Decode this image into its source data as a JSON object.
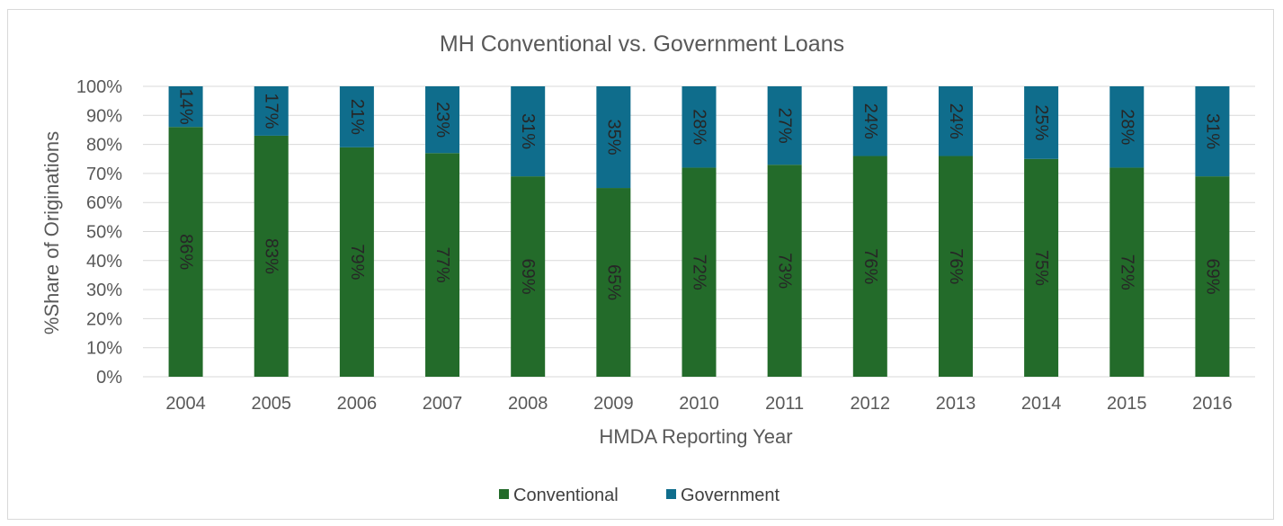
{
  "chart_data": {
    "type": "bar",
    "stacked": true,
    "orientation": "vertical",
    "title": "MH Conventional vs. Government Loans",
    "xlabel": "HMDA Reporting Year",
    "ylabel": "%Share of Originations",
    "ylim": [
      0,
      100
    ],
    "y_ticks": [
      "0%",
      "10%",
      "20%",
      "30%",
      "40%",
      "50%",
      "60%",
      "70%",
      "80%",
      "90%",
      "100%"
    ],
    "grid": true,
    "legend_position": "bottom",
    "data_labels": true,
    "data_label_rotation": "vertical",
    "categories": [
      "2004",
      "2005",
      "2006",
      "2007",
      "2008",
      "2009",
      "2010",
      "2011",
      "2012",
      "2013",
      "2014",
      "2015",
      "2016"
    ],
    "series": [
      {
        "name": "Conventional",
        "color": "#236b2a",
        "values": [
          86,
          83,
          79,
          77,
          69,
          65,
          72,
          73,
          76,
          76,
          75,
          72,
          69
        ],
        "labels": [
          "86%",
          "83%",
          "79%",
          "77%",
          "69%",
          "65%",
          "72%",
          "73%",
          "76%",
          "76%",
          "75%",
          "72%",
          "69%"
        ]
      },
      {
        "name": "Government",
        "color": "#0f6d8c",
        "values": [
          14,
          17,
          21,
          23,
          31,
          35,
          28,
          27,
          24,
          24,
          25,
          28,
          31
        ],
        "labels": [
          "14%",
          "17%",
          "21%",
          "23%",
          "31%",
          "35%",
          "28%",
          "27%",
          "24%",
          "24%",
          "25%",
          "28%",
          "31%"
        ]
      }
    ]
  }
}
